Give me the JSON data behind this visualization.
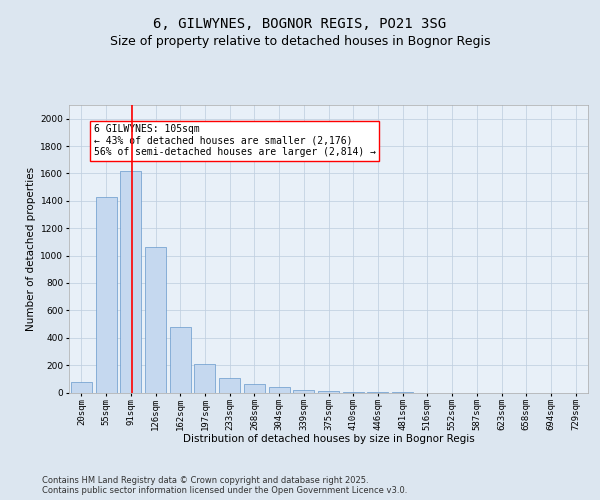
{
  "title": "6, GILWYNES, BOGNOR REGIS, PO21 3SG",
  "subtitle": "Size of property relative to detached houses in Bognor Regis",
  "xlabel": "Distribution of detached houses by size in Bognor Regis",
  "ylabel": "Number of detached properties",
  "categories": [
    "20sqm",
    "55sqm",
    "91sqm",
    "126sqm",
    "162sqm",
    "197sqm",
    "233sqm",
    "268sqm",
    "304sqm",
    "339sqm",
    "375sqm",
    "410sqm",
    "446sqm",
    "481sqm",
    "516sqm",
    "552sqm",
    "587sqm",
    "623sqm",
    "658sqm",
    "694sqm",
    "729sqm"
  ],
  "values": [
    80,
    1430,
    1620,
    1060,
    480,
    205,
    105,
    60,
    40,
    15,
    8,
    4,
    2,
    1,
    0,
    0,
    0,
    0,
    0,
    0,
    0
  ],
  "bar_color": "#c5d8ef",
  "bar_edge_color": "#6699cc",
  "vline_x_index": 2,
  "vline_color": "red",
  "annotation_text": "6 GILWYNES: 105sqm\n← 43% of detached houses are smaller (2,176)\n56% of semi-detached houses are larger (2,814) →",
  "annotation_box_color": "white",
  "annotation_box_edgecolor": "red",
  "ylim": [
    0,
    2100
  ],
  "yticks": [
    0,
    200,
    400,
    600,
    800,
    1000,
    1200,
    1400,
    1600,
    1800,
    2000
  ],
  "bg_color": "#dce6f0",
  "plot_bg_color": "#e8f0f8",
  "grid_color": "#c0cfe0",
  "footer": "Contains HM Land Registry data © Crown copyright and database right 2025.\nContains public sector information licensed under the Open Government Licence v3.0.",
  "title_fontsize": 10,
  "subtitle_fontsize": 9,
  "axis_label_fontsize": 7.5,
  "tick_fontsize": 6.5,
  "annotation_fontsize": 7,
  "footer_fontsize": 6
}
